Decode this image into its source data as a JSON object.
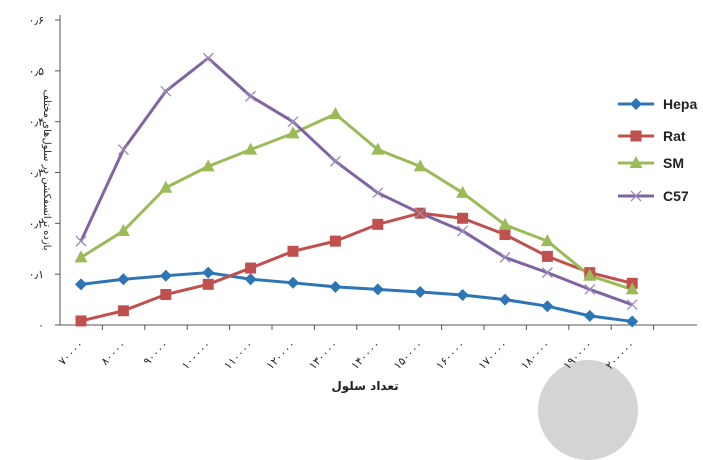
{
  "chart_data": {
    "type": "line",
    "title": "",
    "xlabel": "تعداد سلول",
    "ylabel": "بازده ترانسفکشن در سلول‌های مختلف",
    "categories": [
      "۷۰۰۰۰",
      "۸۰۰۰۰",
      "۹۰۰۰۰",
      "۱۰۰۰۰۰",
      "۱۱۰۰۰۰",
      "۱۲۰۰۰۰",
      "۱۳۰۰۰۰",
      "۱۴۰۰۰۰",
      "۱۵۰۰۰۰",
      "۱۶۰۰۰۰",
      "۱۷۰۰۰۰",
      "۱۸۰۰۰۰",
      "۱۹۰۰۰۰",
      "۲۰۰۰۰۰"
    ],
    "y_ticks": [
      "۰",
      "۰٫۱",
      "۰٫۲",
      "۰٫۳",
      "۰٫۴",
      "۰٫۵",
      "۰٫۶"
    ],
    "ylim": [
      0,
      0.6
    ],
    "grid": false,
    "legend_position": "right",
    "series": [
      {
        "name": "Hepa",
        "color": "#2e75b6",
        "marker": "diamond",
        "values": [
          0.08,
          0.09,
          0.097,
          0.103,
          0.09,
          0.083,
          0.075,
          0.07,
          0.065,
          0.059,
          0.05,
          0.037,
          0.018,
          0.007
        ]
      },
      {
        "name": "Rat",
        "color": "#c0504d",
        "marker": "square",
        "values": [
          0.008,
          0.028,
          0.06,
          0.08,
          0.112,
          0.145,
          0.165,
          0.198,
          0.22,
          0.21,
          0.178,
          0.135,
          0.103,
          0.082
        ]
      },
      {
        "name": "SM",
        "color": "#9bbb59",
        "marker": "triangle",
        "values": [
          0.133,
          0.185,
          0.27,
          0.312,
          0.345,
          0.377,
          0.415,
          0.345,
          0.312,
          0.26,
          0.197,
          0.165,
          0.097,
          0.07
        ]
      },
      {
        "name": "C57",
        "color": "#8064a2",
        "marker": "x",
        "values": [
          0.165,
          0.345,
          0.46,
          0.525,
          0.45,
          0.4,
          0.322,
          0.26,
          0.22,
          0.185,
          0.133,
          0.103,
          0.07,
          0.04
        ]
      }
    ]
  }
}
